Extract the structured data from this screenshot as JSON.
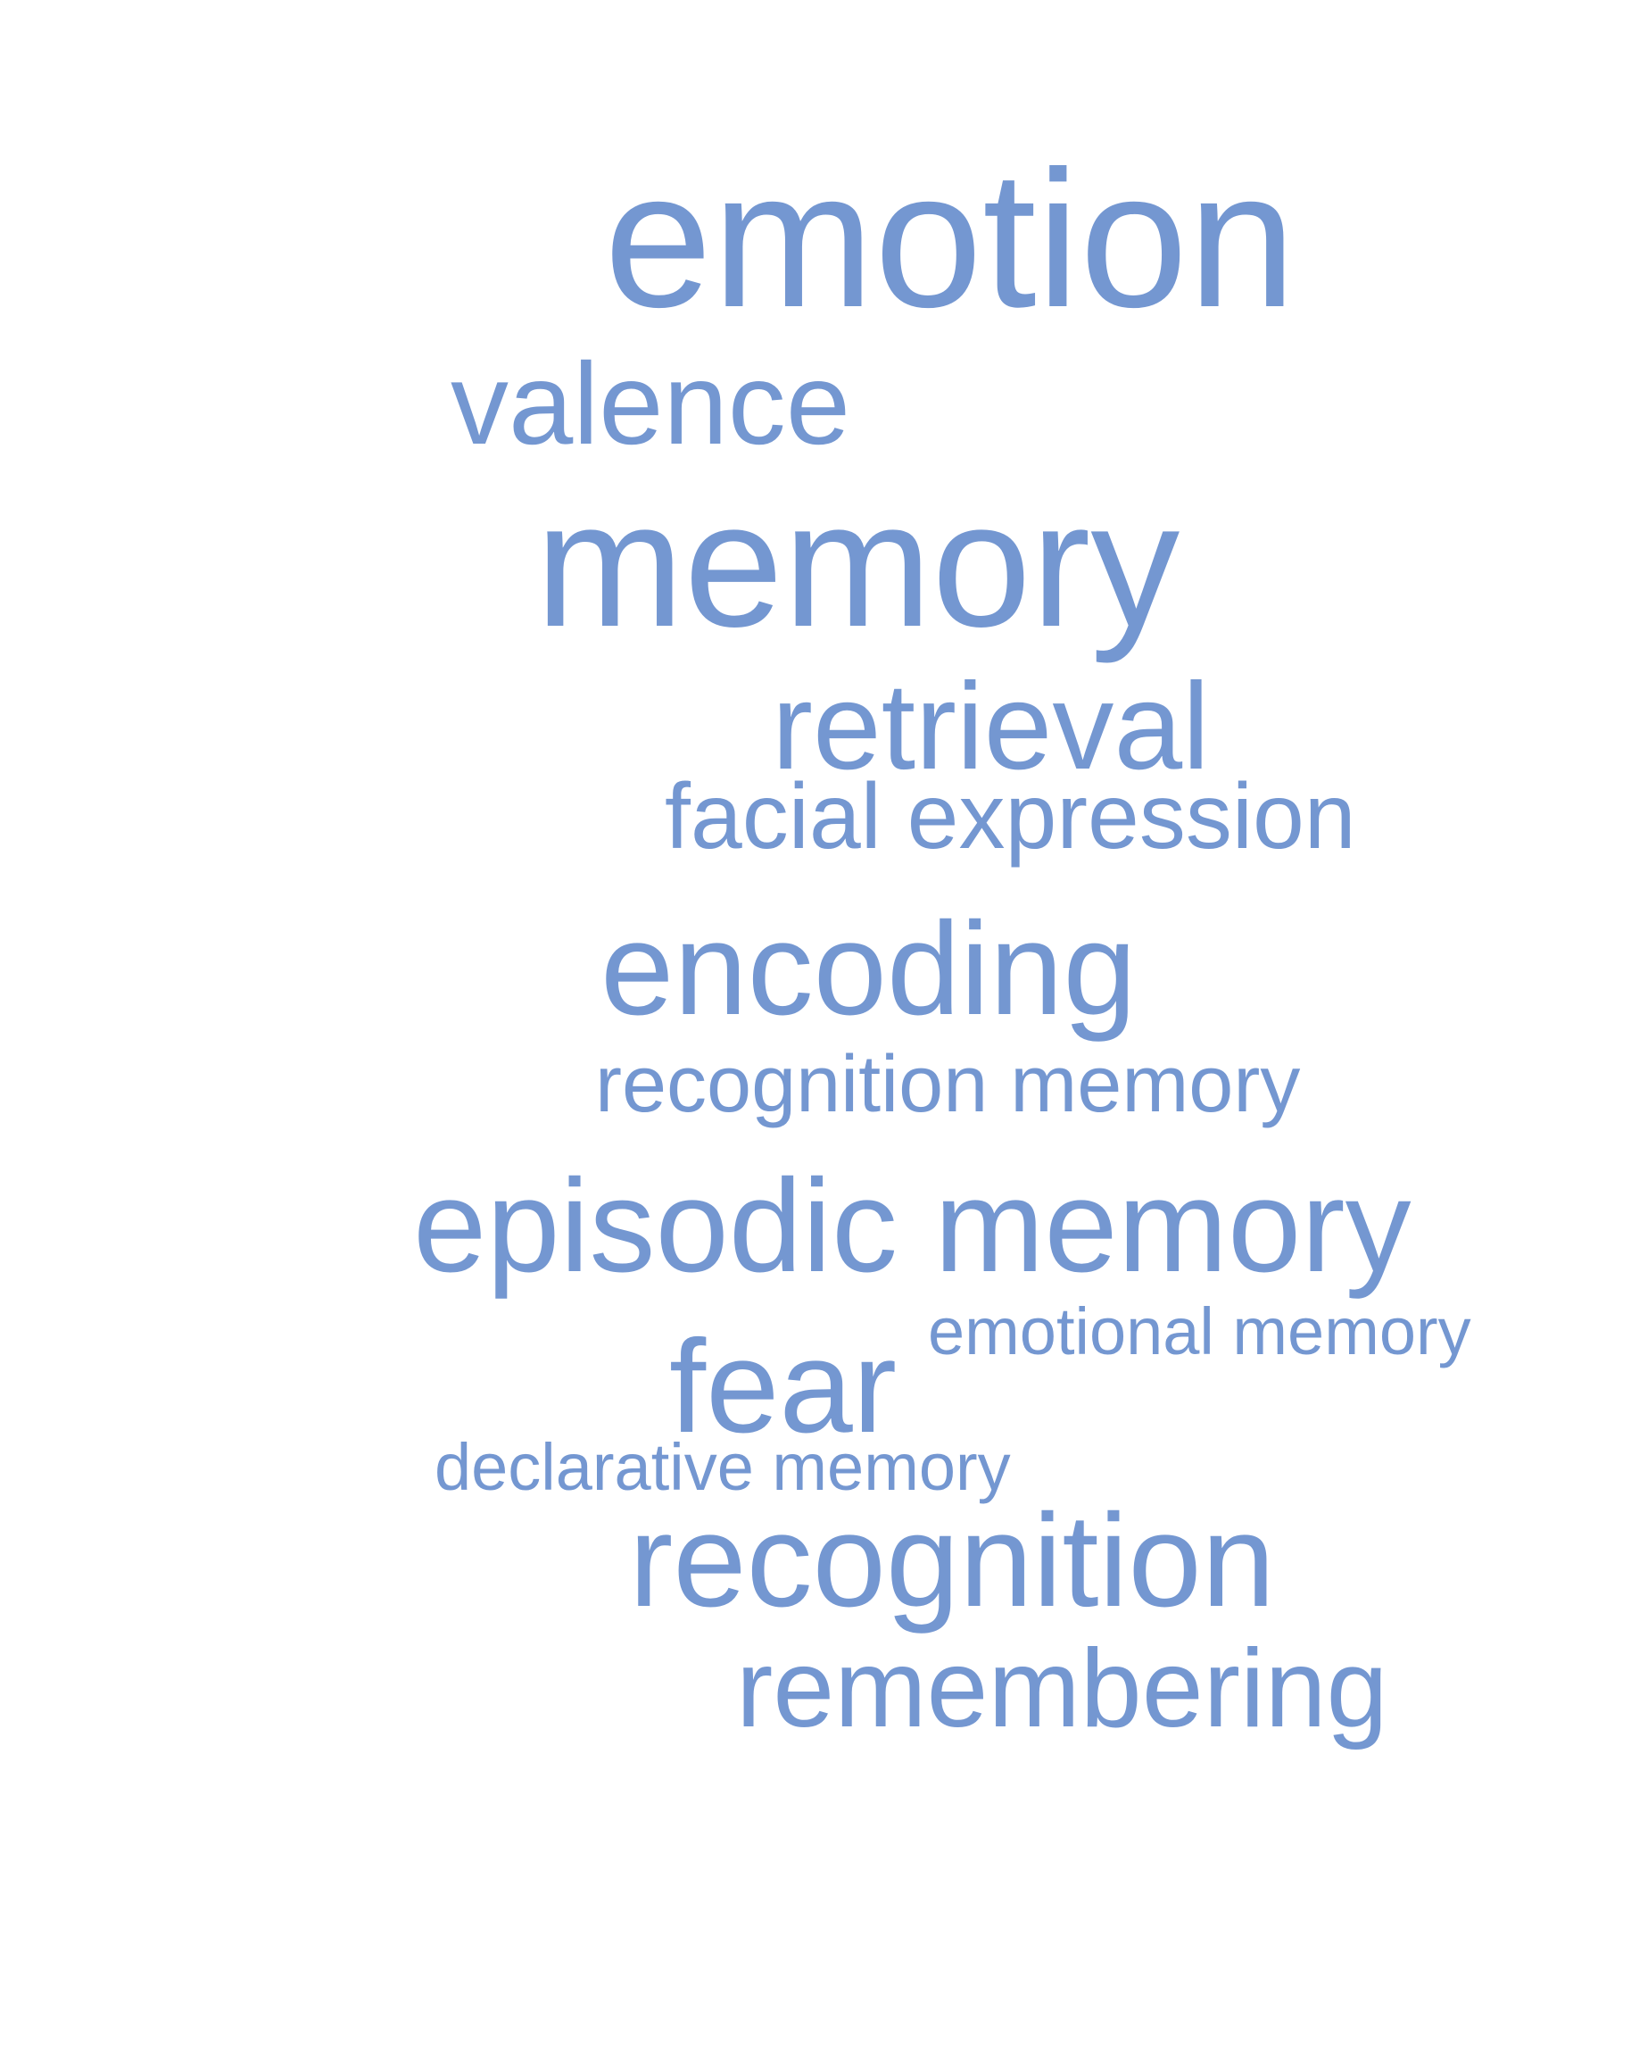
{
  "word_cloud": {
    "color": "#7497d1",
    "words": {
      "emotion": "emotion",
      "valence": "valence",
      "memory": "memory",
      "retrieval": "retrieval",
      "facial_expression": "facial expression",
      "encoding": "encoding",
      "recognition_memory": "recognition memory",
      "episodic_memory": "episodic memory",
      "emotional_memory": "emotional memory",
      "fear": "fear",
      "declarative_memory": "declarative memory",
      "recognition": "recognition",
      "remembering": "remembering"
    }
  }
}
